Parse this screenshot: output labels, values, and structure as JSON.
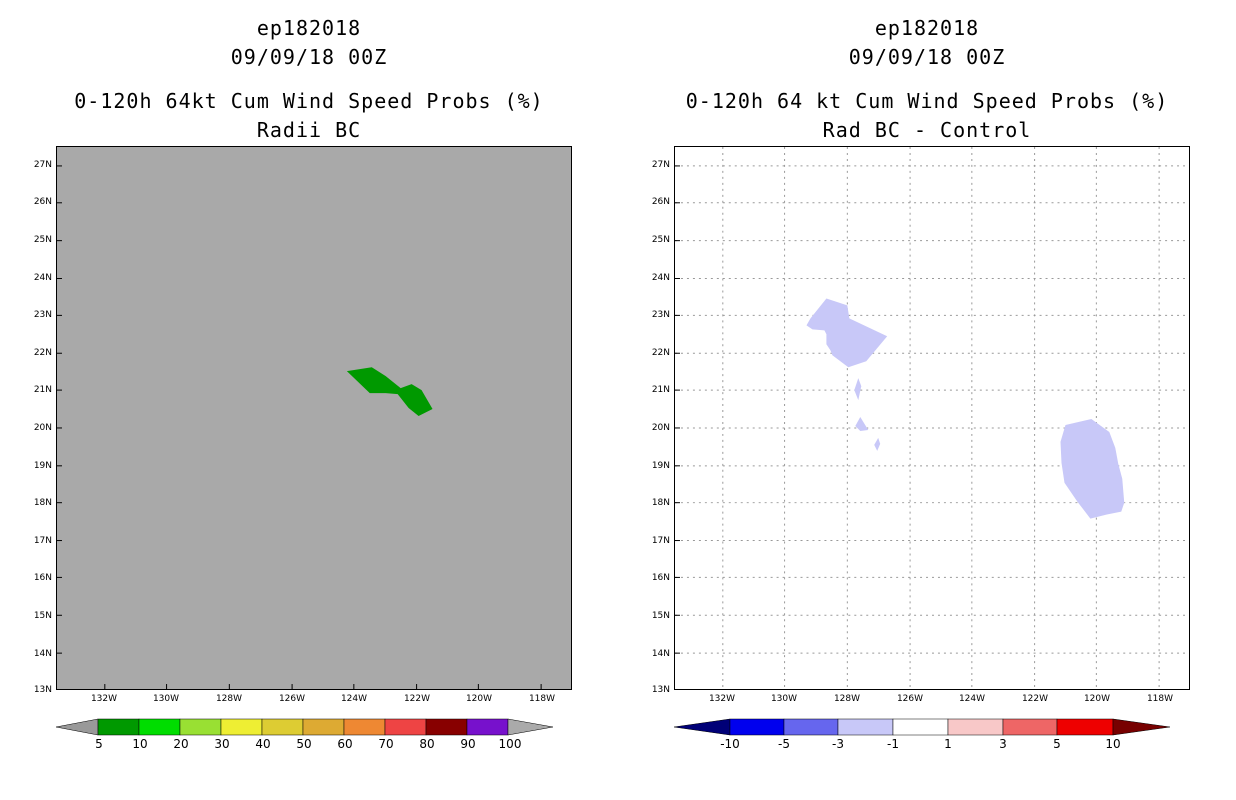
{
  "left_panel": {
    "title_storm": "ep182018",
    "title_date": "09/09/18 00Z",
    "title_product": "0-120h 64kt Cum Wind Speed Probs (%)",
    "title_sub": "Radii BC",
    "background_color": "#a9a9a9",
    "colorbar": {
      "labels": [
        "5",
        "10",
        "20",
        "30",
        "40",
        "50",
        "60",
        "70",
        "80",
        "90",
        "100"
      ],
      "colors": [
        "#009900",
        "#00dd00",
        "#99e033",
        "#eeee33",
        "#ddcc33",
        "#ddaa33",
        "#ee8833",
        "#ee4444",
        "#880000",
        "#7711cc"
      ],
      "under_color": "#999999",
      "over_color": "#aaaaaa"
    }
  },
  "right_panel": {
    "title_storm": "ep182018",
    "title_date": "09/09/18 00Z",
    "title_product": "0-120h 64 kt Cum Wind Speed Probs (%)",
    "title_sub": "Rad BC - Control",
    "background_color": "#ffffff",
    "colorbar": {
      "labels": [
        "-10",
        "-5",
        "-3",
        "-1",
        "1",
        "3",
        "5",
        "10"
      ],
      "colors": [
        "#0000ee",
        "#6666ee",
        "#c8c8f8",
        "#ffffff",
        "#f8c8c8",
        "#ee6666",
        "#ee0000"
      ],
      "under_color": "#000077",
      "over_color": "#770000"
    }
  },
  "axes": {
    "lat_labels": [
      "27N",
      "26N",
      "25N",
      "24N",
      "23N",
      "22N",
      "21N",
      "20N",
      "19N",
      "18N",
      "17N",
      "16N",
      "15N",
      "14N",
      "13N"
    ],
    "lon_labels": [
      "132W",
      "130W",
      "128W",
      "126W",
      "124W",
      "122W",
      "120W",
      "118W"
    ]
  },
  "overlays": {
    "left_probability_color": "#009900",
    "right_negative_color": "#c8c8f8",
    "grid_color": "#999999"
  }
}
